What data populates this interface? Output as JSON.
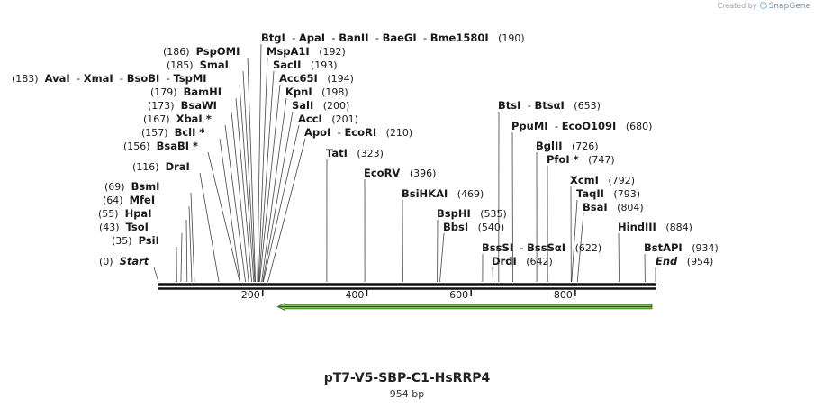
{
  "watermark": {
    "prefix": "Created by",
    "brand": "SnapGene"
  },
  "title": "pT7-V5-SBP-C1-HsRRP4",
  "subtitle": "954 bp",
  "sequence_length": 954,
  "ruler_ticks": [
    "200",
    "400",
    "600",
    "800"
  ],
  "feature": {
    "name": "orf-arrow",
    "start": 225,
    "end": 954,
    "direction": "reverse",
    "color": "#8bd35b"
  },
  "sites": [
    {
      "label": [
        {
          "t": "Start",
          "italic": true
        }
      ],
      "pos_text": "(0)",
      "position": 0
    },
    {
      "label": [
        {
          "t": "PsiI"
        }
      ],
      "pos_text": "(35)",
      "position": 35
    },
    {
      "label": [
        {
          "t": "TsoI"
        }
      ],
      "pos_text": "(43)",
      "position": 43
    },
    {
      "label": [
        {
          "t": "HpaI"
        }
      ],
      "pos_text": "(55)",
      "position": 55
    },
    {
      "label": [
        {
          "t": "MfeI"
        }
      ],
      "pos_text": "(64)",
      "position": 64
    },
    {
      "label": [
        {
          "t": "BsmI"
        }
      ],
      "pos_text": "(69)",
      "position": 69
    },
    {
      "label": [
        {
          "t": "DraI"
        }
      ],
      "pos_text": "(116)",
      "position": 116
    },
    {
      "label": [
        {
          "t": "BsaBI *"
        }
      ],
      "pos_text": "(156)",
      "position": 156
    },
    {
      "label": [
        {
          "t": "BclI *"
        }
      ],
      "pos_text": "(157)",
      "position": 157
    },
    {
      "label": [
        {
          "t": "XbaI *"
        }
      ],
      "pos_text": "(167)",
      "position": 167
    },
    {
      "label": [
        {
          "t": "BsaWI"
        }
      ],
      "pos_text": "(173)",
      "position": 173
    },
    {
      "label": [
        {
          "t": "BamHI"
        }
      ],
      "pos_text": "(179)",
      "position": 179
    },
    {
      "label": [
        {
          "t": "AvaI"
        },
        {
          "t": "XmaI"
        },
        {
          "t": "BsoBI"
        },
        {
          "t": "TspMI"
        }
      ],
      "pos_text": "(183)",
      "position": 183
    },
    {
      "label": [
        {
          "t": "SmaI"
        }
      ],
      "pos_text": "(185)",
      "position": 185
    },
    {
      "label": [
        {
          "t": "PspOMI"
        }
      ],
      "pos_text": "(186)",
      "position": 186
    },
    {
      "label": [
        {
          "t": "BtgI"
        },
        {
          "t": "ApaI"
        },
        {
          "t": "BanII"
        },
        {
          "t": "BaeGI"
        },
        {
          "t": "Bme1580I"
        }
      ],
      "pos_text": "(190)",
      "position": 190
    },
    {
      "label": [
        {
          "t": "MspA1I"
        }
      ],
      "pos_text": "(192)",
      "position": 192
    },
    {
      "label": [
        {
          "t": "SacII"
        }
      ],
      "pos_text": "(193)",
      "position": 193
    },
    {
      "label": [
        {
          "t": "Acc65I"
        }
      ],
      "pos_text": "(194)",
      "position": 194
    },
    {
      "label": [
        {
          "t": "KpnI"
        }
      ],
      "pos_text": "(198)",
      "position": 198
    },
    {
      "label": [
        {
          "t": "SalI"
        }
      ],
      "pos_text": "(200)",
      "position": 200
    },
    {
      "label": [
        {
          "t": "AccI"
        }
      ],
      "pos_text": "(201)",
      "position": 201
    },
    {
      "label": [
        {
          "t": "ApoI"
        },
        {
          "t": "EcoRI"
        }
      ],
      "pos_text": "(210)",
      "position": 210
    },
    {
      "label": [
        {
          "t": "TatI"
        }
      ],
      "pos_text": "(323)",
      "position": 323
    },
    {
      "label": [
        {
          "t": "EcoRV"
        }
      ],
      "pos_text": "(396)",
      "position": 396
    },
    {
      "label": [
        {
          "t": "BsiHKAI"
        }
      ],
      "pos_text": "(469)",
      "position": 469
    },
    {
      "label": [
        {
          "t": "BspHI"
        }
      ],
      "pos_text": "(535)",
      "position": 535
    },
    {
      "label": [
        {
          "t": "BbsI"
        }
      ],
      "pos_text": "(540)",
      "position": 540
    },
    {
      "label": [
        {
          "t": "BssSI"
        },
        {
          "t": "BssSαI"
        }
      ],
      "pos_text": "(622)",
      "position": 622
    },
    {
      "label": [
        {
          "t": "DrdI"
        }
      ],
      "pos_text": "(642)",
      "position": 642
    },
    {
      "label": [
        {
          "t": "BtsI"
        },
        {
          "t": "BtsαI"
        }
      ],
      "pos_text": "(653)",
      "position": 653
    },
    {
      "label": [
        {
          "t": "PpuMI"
        },
        {
          "t": "EcoO109I"
        }
      ],
      "pos_text": "(680)",
      "position": 680
    },
    {
      "label": [
        {
          "t": "BglII"
        }
      ],
      "pos_text": "(726)",
      "position": 726
    },
    {
      "label": [
        {
          "t": "PfoI *"
        }
      ],
      "pos_text": "(747)",
      "position": 747
    },
    {
      "label": [
        {
          "t": "XcmI"
        }
      ],
      "pos_text": "(792)",
      "position": 792
    },
    {
      "label": [
        {
          "t": "TaqII"
        }
      ],
      "pos_text": "(793)",
      "position": 793
    },
    {
      "label": [
        {
          "t": "BsaI"
        }
      ],
      "pos_text": "(804)",
      "position": 804
    },
    {
      "label": [
        {
          "t": "HindIII"
        }
      ],
      "pos_text": "(884)",
      "position": 884
    },
    {
      "label": [
        {
          "t": "BstAPI"
        }
      ],
      "pos_text": "(934)",
      "position": 934
    },
    {
      "label": [
        {
          "t": "End",
          "italic": true
        }
      ],
      "pos_text": "(954)",
      "position": 954
    }
  ]
}
